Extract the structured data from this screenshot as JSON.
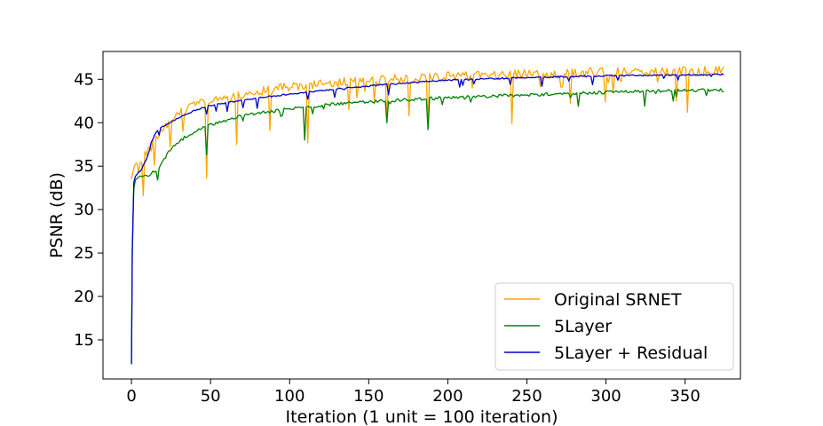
{
  "chart_data": {
    "type": "line",
    "xlabel": "Iteration (1 unit = 100 iteration)",
    "ylabel": "PSNR (dB)",
    "xlim": [
      -18,
      385
    ],
    "ylim": [
      10.5,
      48.2
    ],
    "x_ticks": [
      0,
      50,
      100,
      150,
      200,
      250,
      300,
      350
    ],
    "y_ticks": [
      15,
      20,
      25,
      30,
      35,
      40,
      45
    ],
    "grid": false,
    "legend_position": "lower-right",
    "series": [
      {
        "name": "Original SRNET",
        "color": "#FFA500",
        "x": [
          0,
          1,
          3,
          5,
          7,
          10,
          15,
          20,
          30,
          40,
          50,
          60,
          80,
          100,
          120,
          150,
          200,
          250,
          300,
          350,
          375
        ],
        "y": [
          33.5,
          34.5,
          35.5,
          36,
          35.8,
          36.5,
          37.8,
          39.5,
          41,
          42,
          42.5,
          43,
          43.6,
          44.1,
          44.5,
          44.9,
          45.3,
          45.6,
          45.8,
          45.9,
          46.0
        ],
        "dips": [
          [
            5,
            34.2
          ],
          [
            8,
            31.6
          ],
          [
            15,
            35.1
          ],
          [
            25,
            37.2
          ],
          [
            33,
            39.0
          ],
          [
            48,
            33.6
          ],
          [
            67,
            37.5
          ],
          [
            88,
            39.1
          ],
          [
            112,
            37.7
          ],
          [
            138,
            41.5
          ],
          [
            162,
            40.5
          ],
          [
            176,
            40.8
          ],
          [
            188,
            39.8
          ],
          [
            241,
            39.9
          ],
          [
            278,
            42.2
          ],
          [
            300,
            42.4
          ],
          [
            345,
            42.5
          ],
          [
            352,
            41.2
          ]
        ]
      },
      {
        "name": "5Layer",
        "color": "#008000",
        "x": [
          0,
          0.5,
          1,
          2,
          3,
          5,
          8,
          12,
          18,
          25,
          35,
          50,
          70,
          100,
          130,
          160,
          200,
          250,
          300,
          350,
          375
        ],
        "y": [
          12.2,
          25,
          31.5,
          33.2,
          33.6,
          33.8,
          33.8,
          34.0,
          35.0,
          37.0,
          38.5,
          39.8,
          40.8,
          41.6,
          42.2,
          42.5,
          42.9,
          43.2,
          43.5,
          43.7,
          43.75
        ],
        "dips": [
          [
            17,
            33.4
          ],
          [
            48,
            36.3
          ],
          [
            110,
            38.0
          ],
          [
            162,
            40.0
          ],
          [
            188,
            39.2
          ],
          [
            283,
            41.9
          ],
          [
            325,
            41.9
          ],
          [
            343,
            42.5
          ]
        ]
      },
      {
        "name": "5Layer + Residual",
        "color": "#0000CC",
        "x": [
          0,
          0.3,
          0.6,
          1,
          2,
          4,
          6,
          8,
          10,
          12,
          15,
          20,
          30,
          40,
          50,
          70,
          100,
          130,
          160,
          200,
          250,
          300,
          350,
          375
        ],
        "y": [
          12.2,
          20,
          28,
          32.5,
          33.7,
          34.2,
          34.5,
          35.2,
          36.0,
          37.5,
          38.8,
          39.6,
          40.6,
          41.4,
          42.0,
          42.6,
          43.3,
          43.9,
          44.4,
          44.9,
          45.2,
          45.4,
          45.5,
          45.55
        ],
        "dips": [
          [
            12,
            36.9
          ],
          [
            48,
            41.0
          ],
          [
            112,
            42.7
          ],
          [
            135,
            43.8
          ],
          [
            163,
            43.2
          ],
          [
            210,
            44.3
          ],
          [
            240,
            44.4
          ],
          [
            277,
            44.8
          ],
          [
            308,
            44.9
          ],
          [
            337,
            45.1
          ]
        ]
      }
    ]
  }
}
